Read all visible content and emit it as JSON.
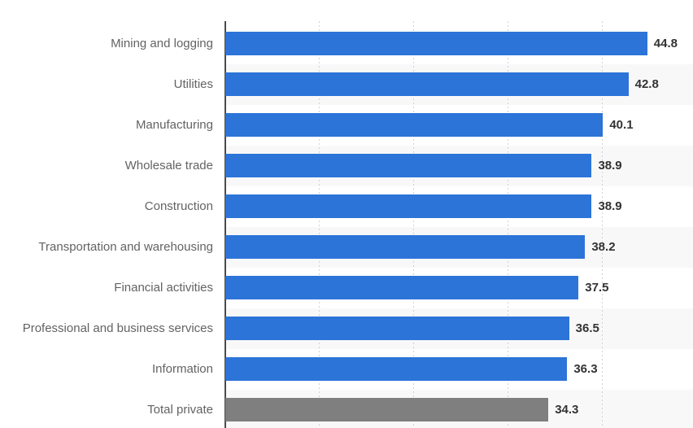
{
  "chart_data": {
    "type": "bar",
    "orientation": "horizontal",
    "title": "",
    "xlabel": "",
    "ylabel": "",
    "categories": [
      "Mining and logging",
      "Utilities",
      "Manufacturing",
      "Wholesale trade",
      "Construction",
      "Transportation and warehousing",
      "Financial activities",
      "Professional and business services",
      "Information",
      "Total private"
    ],
    "values": [
      44.8,
      42.8,
      40.1,
      38.9,
      38.9,
      38.2,
      37.5,
      36.5,
      36.3,
      34.3
    ],
    "value_labels": [
      "44.8",
      "42.8",
      "40.1",
      "38.9",
      "38.9",
      "38.2",
      "37.5",
      "36.5",
      "36.3",
      "34.3"
    ],
    "xlim": [
      0,
      50
    ],
    "gridlines_x": [
      10,
      20,
      30,
      40
    ],
    "grid_style": "dotted-vertical",
    "legend": "none",
    "highlight_category": "Total private",
    "colors": {
      "bar_default": "#2c74d8",
      "bar_total": "#7f7f7f",
      "row_band": "#f8f8f8",
      "gridline": "#d2d2d2",
      "axis_line": "#4a4a4a",
      "category_label": "#636363",
      "value_label": "#333333",
      "background": "#ffffff"
    }
  }
}
